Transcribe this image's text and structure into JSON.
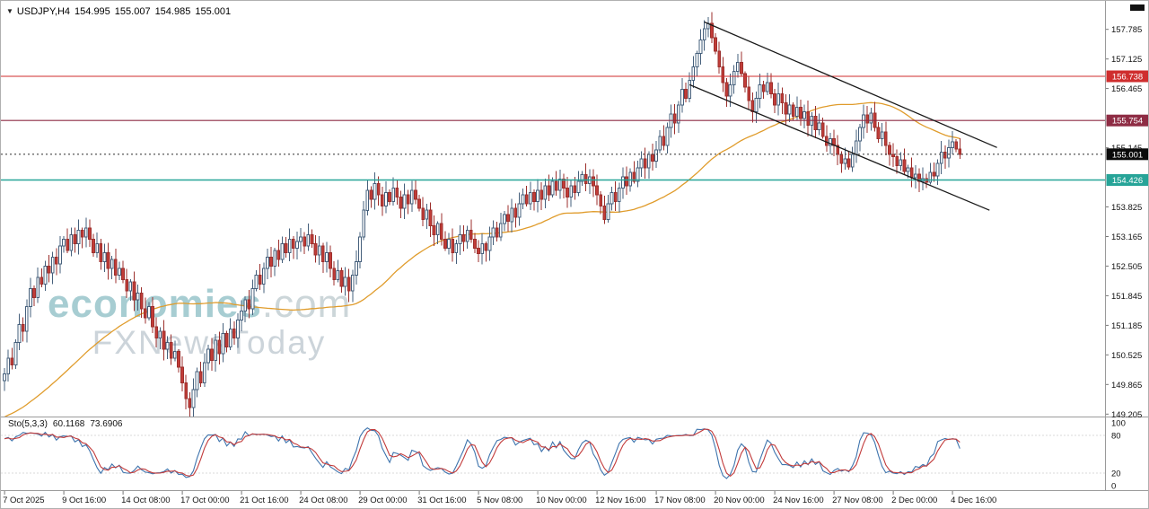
{
  "header": {
    "symbol_timeframe": "USDJPY,H4",
    "open": "154.995",
    "high": "155.007",
    "low": "154.985",
    "close": "155.001"
  },
  "watermark": {
    "brand": "economies",
    "brand_suffix": ".com",
    "subtitle": "FXNewsToday"
  },
  "indicator": {
    "name": "Sto(5,3,3)",
    "value_main": "60.1168",
    "value_signal": "73.6906",
    "scale_labels": [
      "100",
      "80",
      "20",
      "0"
    ],
    "level_lines": [
      80,
      20
    ],
    "color_main": "#3e74ad",
    "color_signal": "#c23b3b"
  },
  "price_axis": {
    "ticks": [
      "157.785",
      "157.125",
      "156.465",
      "155.145",
      "153.825",
      "153.165",
      "152.505",
      "151.845",
      "151.185",
      "150.525",
      "149.865",
      "149.205"
    ],
    "badges": [
      {
        "value": "156.738",
        "color": "#cf2e2e"
      },
      {
        "value": "155.754",
        "color": "#8e2c44"
      },
      {
        "value": "155.001",
        "color": "#0a0a0a"
      },
      {
        "value": "154.426",
        "color": "#27a498"
      }
    ]
  },
  "time_axis": {
    "labels": [
      {
        "text": "7 Oct 2025",
        "bar": 0
      },
      {
        "text": "9 Oct 16:00",
        "bar": 16
      },
      {
        "text": "14 Oct 08:00",
        "bar": 32
      },
      {
        "text": "17 Oct 00:00",
        "bar": 48
      },
      {
        "text": "21 Oct 16:00",
        "bar": 64
      },
      {
        "text": "24 Oct 08:00",
        "bar": 80
      },
      {
        "text": "29 Oct 00:00",
        "bar": 96
      },
      {
        "text": "31 Oct 16:00",
        "bar": 112
      },
      {
        "text": "5 Nov 08:00",
        "bar": 128
      },
      {
        "text": "10 Nov 00:00",
        "bar": 144
      },
      {
        "text": "12 Nov 16:00",
        "bar": 160
      },
      {
        "text": "17 Nov 08:00",
        "bar": 176
      },
      {
        "text": "20 Nov 00:00",
        "bar": 192
      },
      {
        "text": "24 Nov 16:00",
        "bar": 208
      },
      {
        "text": "27 Nov 08:00",
        "bar": 224
      },
      {
        "text": "2 Dec 00:00",
        "bar": 240
      },
      {
        "text": "4 Dec 16:00",
        "bar": 256
      }
    ]
  },
  "chart_data": {
    "type": "candlestick",
    "symbol": "USDJPY",
    "timeframe": "H4",
    "title": "USDJPY,H4 154.995 155.007 154.985 155.001",
    "price_range": {
      "top": 158.42,
      "bottom": 149.17
    },
    "current_price": 155.001,
    "first_open": 149.95,
    "closes": [
      150.1,
      150.45,
      150.3,
      150.8,
      151.2,
      151.05,
      151.6,
      152.0,
      151.8,
      152.25,
      152.1,
      152.5,
      152.35,
      152.7,
      152.55,
      152.95,
      153.1,
      152.85,
      153.2,
      153.0,
      153.3,
      153.15,
      153.35,
      153.1,
      152.8,
      153.0,
      152.6,
      152.8,
      152.45,
      152.65,
      152.3,
      152.45,
      152.2,
      151.95,
      152.15,
      151.75,
      151.9,
      151.55,
      151.35,
      151.6,
      151.15,
      150.9,
      151.05,
      150.65,
      150.8,
      150.45,
      150.6,
      150.25,
      149.9,
      149.55,
      149.35,
      149.75,
      150.15,
      149.9,
      150.35,
      150.65,
      150.4,
      150.85,
      150.55,
      151.0,
      150.7,
      151.1,
      150.9,
      151.3,
      151.5,
      151.75,
      151.55,
      152.0,
      152.3,
      152.1,
      152.45,
      152.7,
      152.5,
      152.85,
      152.65,
      153.0,
      152.8,
      153.1,
      152.9,
      153.05,
      153.15,
      152.95,
      153.2,
      153.0,
      152.75,
      152.95,
      152.6,
      152.8,
      152.45,
      152.2,
      152.4,
      152.05,
      152.25,
      151.95,
      152.3,
      152.6,
      153.15,
      153.75,
      154.2,
      154.0,
      154.35,
      154.1,
      153.85,
      154.15,
      153.95,
      154.25,
      154.05,
      153.8,
      154.1,
      153.9,
      154.2,
      154.0,
      153.8,
      153.55,
      153.75,
      153.4,
      153.2,
      153.45,
      153.1,
      152.9,
      153.1,
      152.8,
      153.0,
      153.2,
      153.05,
      153.3,
      153.1,
      152.9,
      152.78,
      153.0,
      152.85,
      153.15,
      153.35,
      153.15,
      153.45,
      153.65,
      153.5,
      153.8,
      153.6,
      153.9,
      154.1,
      153.9,
      154.15,
      153.95,
      154.2,
      154.0,
      154.3,
      154.1,
      154.4,
      154.2,
      154.45,
      154.25,
      154.05,
      154.3,
      154.15,
      154.4,
      154.55,
      154.35,
      154.5,
      154.3,
      154.1,
      153.85,
      153.55,
      153.9,
      154.15,
      153.95,
      154.25,
      154.5,
      154.3,
      154.6,
      154.4,
      154.7,
      154.9,
      154.7,
      155.0,
      154.85,
      155.1,
      155.4,
      155.2,
      155.6,
      155.9,
      155.7,
      156.1,
      156.45,
      156.25,
      156.65,
      156.95,
      157.25,
      157.55,
      157.8,
      157.92,
      157.6,
      157.3,
      156.95,
      156.6,
      156.3,
      156.55,
      156.85,
      157.05,
      156.8,
      156.5,
      156.2,
      155.95,
      156.25,
      156.55,
      156.4,
      156.6,
      156.35,
      156.1,
      156.35,
      156.15,
      155.9,
      156.1,
      155.85,
      156.05,
      155.8,
      155.95,
      155.65,
      155.85,
      155.55,
      155.7,
      155.4,
      155.2,
      155.35,
      155.2,
      155.0,
      154.8,
      154.9,
      154.72,
      155.0,
      155.3,
      155.6,
      155.88,
      155.7,
      155.92,
      155.6,
      155.35,
      155.5,
      155.2,
      155.0,
      154.95,
      154.75,
      154.88,
      154.62,
      154.7,
      154.48,
      154.56,
      154.4,
      154.46,
      154.38,
      154.6,
      154.52,
      154.8,
      155.05,
      154.92,
      155.15,
      155.28,
      155.12,
      155.0
    ],
    "horizontal_levels": [
      {
        "price": 156.738,
        "color": "#cf2e2e",
        "style": "solid",
        "name": "resistance-line"
      },
      {
        "price": 155.754,
        "color": "#8e2c44",
        "style": "solid",
        "name": "pivot-line"
      },
      {
        "price": 154.426,
        "color": "#27a498",
        "style": "solid",
        "name": "support-line"
      },
      {
        "price": 155.001,
        "color": "#444444",
        "style": "dashed",
        "name": "current-price-line"
      }
    ],
    "trendlines": [
      {
        "from": {
          "bar": 189,
          "price": 157.95
        },
        "to": {
          "bar": 268,
          "price": 155.15
        },
        "color": "#1a1a1a",
        "name": "channel-upper"
      },
      {
        "from": {
          "bar": 185,
          "price": 156.55
        },
        "to": {
          "bar": 266,
          "price": 153.75
        },
        "color": "#1a1a1a",
        "name": "channel-lower"
      }
    ],
    "moving_average": {
      "color": "#e09c2c"
    },
    "candle_colors": {
      "bull_fill": "#ffffff",
      "bull_stroke": "#46607c",
      "bear_fill": "#c23c38",
      "bear_stroke": "#9c2f2c"
    },
    "stochastic": {
      "period": 5,
      "slowing": 3,
      "signal": 3
    }
  }
}
